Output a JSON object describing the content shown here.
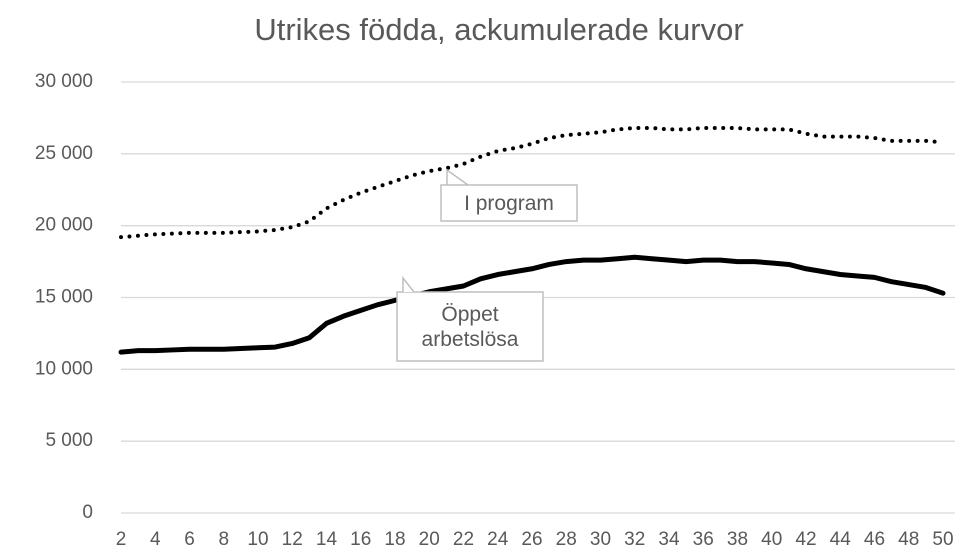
{
  "chart_data": {
    "type": "line",
    "title": "Utrikes födda, ackumulerade kurvor",
    "x": [
      2,
      3,
      4,
      5,
      6,
      7,
      8,
      9,
      10,
      11,
      12,
      13,
      14,
      15,
      16,
      17,
      18,
      19,
      20,
      21,
      22,
      23,
      24,
      25,
      26,
      27,
      28,
      29,
      30,
      31,
      32,
      33,
      34,
      35,
      36,
      37,
      38,
      39,
      40,
      41,
      42,
      43,
      44,
      45,
      46,
      47,
      48,
      49,
      50
    ],
    "series": [
      {
        "name": "I program",
        "color": "#000000",
        "style": "dotted",
        "values": [
          19200,
          19300,
          19400,
          19450,
          19500,
          19500,
          19500,
          19550,
          19600,
          19700,
          19900,
          20300,
          21200,
          21800,
          22300,
          22700,
          23100,
          23500,
          23800,
          24000,
          24300,
          24800,
          25200,
          25400,
          25700,
          26100,
          26300,
          26400,
          26500,
          26700,
          26800,
          26800,
          26700,
          26700,
          26800,
          26800,
          26800,
          26700,
          26700,
          26700,
          26400,
          26200,
          26200,
          26200,
          26100,
          25900,
          25900,
          25900,
          25800
        ]
      },
      {
        "name": "Öppet arbetslösa",
        "color": "#000000",
        "style": "solid",
        "values": [
          11200,
          11300,
          11300,
          11350,
          11400,
          11400,
          11400,
          11450,
          11500,
          11550,
          11800,
          12200,
          13200,
          13700,
          14100,
          14500,
          14800,
          15100,
          15400,
          15600,
          15800,
          16300,
          16600,
          16800,
          17000,
          17300,
          17500,
          17600,
          17600,
          17700,
          17800,
          17700,
          17600,
          17500,
          17600,
          17600,
          17500,
          17500,
          17400,
          17300,
          17000,
          16800,
          16600,
          16500,
          16400,
          16100,
          15900,
          15700,
          15300
        ]
      }
    ],
    "xlim": [
      2,
      50
    ],
    "xticks": [
      2,
      4,
      6,
      8,
      10,
      12,
      14,
      16,
      18,
      20,
      22,
      24,
      26,
      28,
      30,
      32,
      34,
      36,
      38,
      40,
      42,
      44,
      46,
      48,
      50
    ],
    "ylim": [
      0,
      30000
    ],
    "yticks": [
      0,
      {
        "value": 5000,
        "label": "5 000"
      },
      {
        "value": 10000,
        "label": "10 000"
      },
      {
        "value": 15000,
        "label": "15 000"
      },
      {
        "value": 20000,
        "label": "20 000"
      },
      {
        "value": 25000,
        "label": "25 000"
      },
      {
        "value": 30000,
        "label": "30 000"
      }
    ],
    "grid": true
  }
}
